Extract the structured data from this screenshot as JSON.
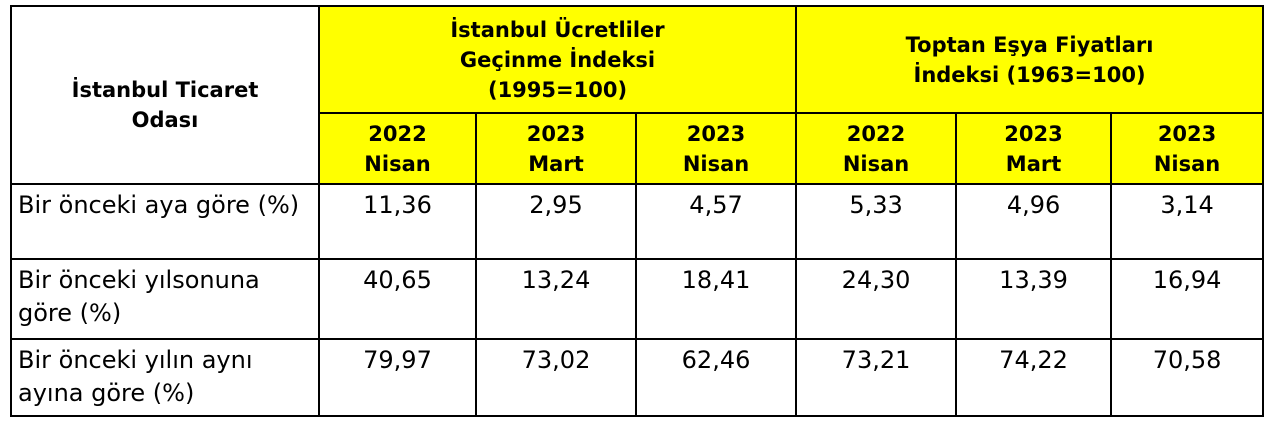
{
  "table": {
    "corner": "İstanbul Ticaret Odası",
    "groups": [
      "İstanbul Ücretliler Geçinme İndeksi (1995=100)",
      "Toptan Eşya Fiyatları İndeksi (1963=100)"
    ],
    "columns": [
      "2022 Nisan",
      "2023 Mart",
      "2023 Nisan",
      "2022 Nisan",
      "2023 Mart",
      "2023 Nisan"
    ],
    "rows": [
      {
        "label": "Bir önceki aya göre (%)",
        "values": [
          "11,36",
          "2,95",
          "4,57",
          "5,33",
          "4,96",
          "3,14"
        ]
      },
      {
        "label": "Bir önceki yılsonuna göre (%)",
        "values": [
          "40,65",
          "13,24",
          "18,41",
          "24,30",
          "13,39",
          "16,94"
        ]
      },
      {
        "label": "Bir önceki yılın aynı ayına göre (%)",
        "values": [
          "79,97",
          "73,02",
          "62,46",
          "73,21",
          "74,22",
          "70,58"
        ]
      }
    ]
  }
}
